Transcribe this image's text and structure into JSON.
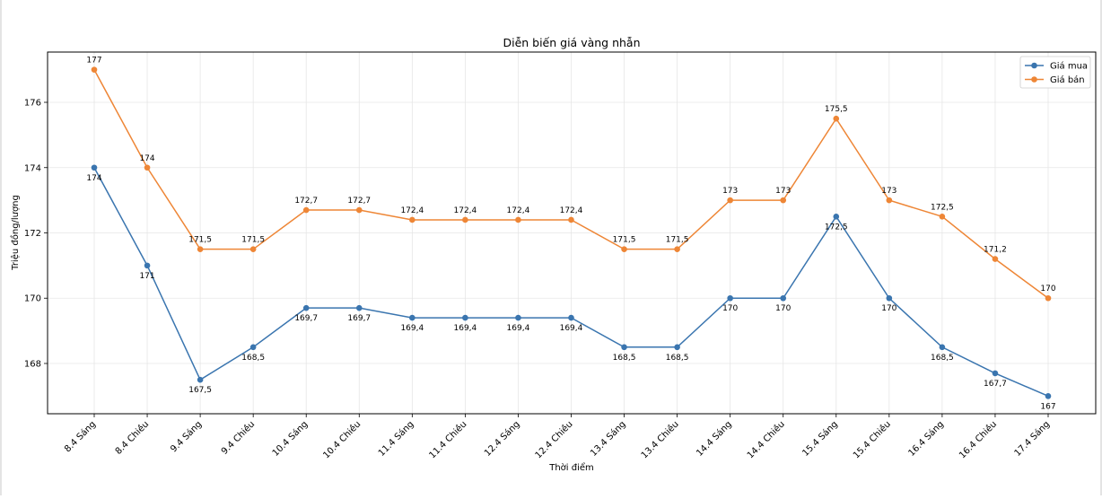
{
  "chart_data": {
    "type": "line",
    "title": "Diễn biến giá vàng nhẫn",
    "xlabel": "Thời điểm",
    "ylabel": "Triệu đồng/lượng",
    "categories": [
      "8.4 Sáng",
      "8.4 Chiều",
      "9.4 Sáng",
      "9.4 Chiều",
      "10.4 Sáng",
      "10.4 Chiều",
      "11.4 Sáng",
      "11.4 Chiều",
      "12.4 Sáng",
      "12.4 Chiều",
      "13.4 Sáng",
      "13.4 Chiều",
      "14.4 Sáng",
      "14.4 Chiều",
      "15.4 Sáng",
      "15.4 Chiều",
      "16.4 Sáng",
      "16.4 Chiều",
      "17.4 Sáng"
    ],
    "series": [
      {
        "name": "Giá mua",
        "color": "#3a75af",
        "label_position": "below",
        "values": [
          174,
          171,
          167.5,
          168.5,
          169.7,
          169.7,
          169.4,
          169.4,
          169.4,
          169.4,
          168.5,
          168.5,
          170,
          170,
          172.5,
          170,
          168.5,
          167.7,
          167
        ]
      },
      {
        "name": "Giá bán",
        "color": "#ee8636",
        "label_position": "above",
        "values": [
          177,
          174,
          171.5,
          171.5,
          172.7,
          172.7,
          172.4,
          172.4,
          172.4,
          172.4,
          171.5,
          171.5,
          173,
          173,
          175.5,
          173,
          172.5,
          171.2,
          170
        ]
      }
    ],
    "yticks": [
      168,
      170,
      172,
      174,
      176
    ],
    "ylim": [
      166.46,
      177.54
    ],
    "grid": true,
    "legend": "top-right",
    "decimal_separator": ","
  }
}
